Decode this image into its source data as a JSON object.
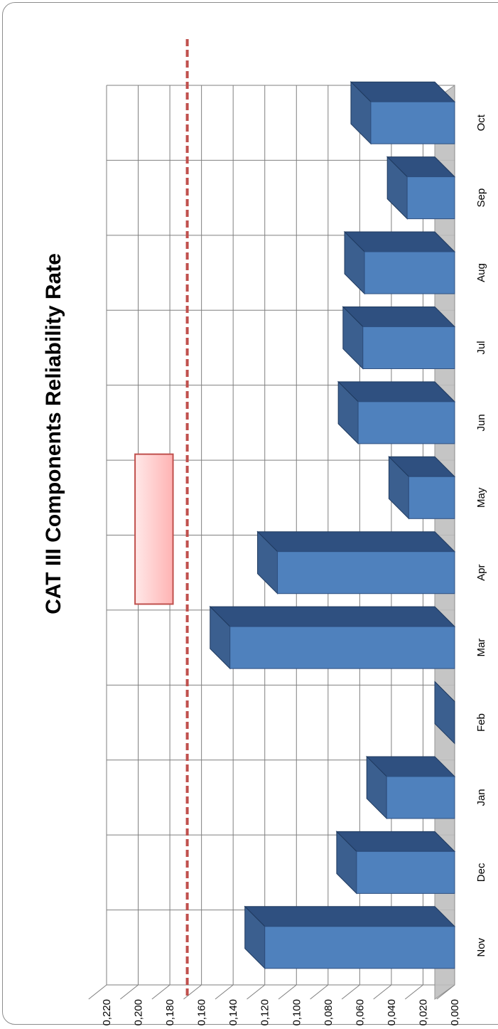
{
  "chart_data": {
    "type": "bar",
    "orientation": "vertical bars in a 3D chart, rendered rotated 90 degrees counter-clockwise",
    "title": "CAT III Components Reliability Rate",
    "xlabel": "",
    "ylabel": "",
    "categories": [
      "Nov",
      "Dec",
      "Jan",
      "Feb",
      "Mar",
      "Apr",
      "May",
      "Jun",
      "Jul",
      "Aug",
      "Sep",
      "Oct"
    ],
    "series": [
      {
        "values": [
          0.12,
          0.062,
          0.043,
          0.0,
          0.142,
          0.112,
          0.029,
          0.061,
          0.058,
          0.057,
          0.03,
          0.053
        ]
      }
    ],
    "y_ticks": [
      "0,000",
      "0,020",
      "0,040",
      "0,060",
      "0,080",
      "0,100",
      "0,120",
      "0,140",
      "0,160",
      "0,180",
      "0,200",
      "0,220"
    ],
    "ylim": [
      0,
      0.22
    ],
    "grid": true,
    "threshold_line": {
      "value": 0.169,
      "style": "dashed",
      "color": "#c0504d"
    },
    "legend_marker": {
      "position": "upper",
      "fill": "#ffc7c7",
      "stroke": "#c0504d"
    },
    "colors": {
      "bar_front": "#4f81bd",
      "bar_top": "#2f5080",
      "bar_side": "#3b5f8f",
      "grid": "#7f7f7f",
      "floor": "#bfbfbf"
    }
  }
}
